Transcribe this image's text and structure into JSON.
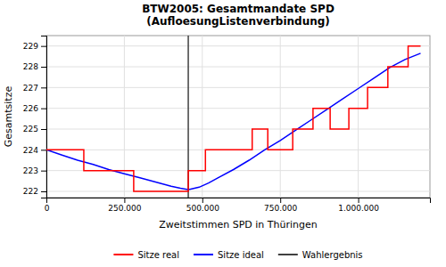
{
  "chart_data": {
    "type": "line",
    "title": "BTW2005: Gesamtmandate SPD\n(AufloesungListenverbindung)",
    "x_label": "Zweitstimmen SPD in Thüringen",
    "y_label": "Gesamtsitze",
    "series": [
      {
        "name": "Sitze real",
        "color": "red",
        "x": [
          0,
          120000,
          120000,
          280000,
          280000,
          390000,
          390000,
          455000,
          455000,
          510000,
          510000,
          590000,
          590000,
          660000,
          660000,
          710000,
          710000,
          790000,
          790000,
          855000,
          855000,
          910000,
          910000,
          970000,
          970000,
          1030000,
          1030000,
          1095000,
          1095000,
          1160000,
          1160000,
          1200000
        ],
        "values": [
          224,
          224,
          223,
          223,
          222,
          222,
          222,
          222,
          223,
          223,
          224,
          224,
          224,
          224,
          225,
          225,
          224,
          224,
          225,
          225,
          226,
          226,
          225,
          225,
          226,
          226,
          227,
          227,
          228,
          228,
          229,
          229
        ]
      },
      {
        "name": "Sitze ideal",
        "color": "blue",
        "x": [
          0,
          50000,
          100000,
          150000,
          200000,
          250000,
          300000,
          350000,
          400000,
          430000,
          450000,
          460000,
          490000,
          520000,
          550000,
          600000,
          650000,
          700000,
          750000,
          800000,
          850000,
          900000,
          950000,
          1000000,
          1050000,
          1100000,
          1150000,
          1200000
        ],
        "values": [
          224.0,
          223.75,
          223.5,
          223.3,
          223.05,
          222.85,
          222.65,
          222.45,
          222.25,
          222.15,
          222.1,
          222.1,
          222.2,
          222.4,
          222.65,
          223.05,
          223.5,
          224.0,
          224.45,
          224.95,
          225.45,
          225.95,
          226.45,
          226.95,
          227.45,
          227.95,
          228.35,
          228.65
        ]
      },
      {
        "name": "Wahlergebnis",
        "color": "#404040",
        "type": "vline",
        "x": [
          455000
        ]
      }
    ],
    "xlim": [
      0,
      1230000
    ],
    "xticks": [
      0,
      {
        "value": 250000,
        "label": "250.000"
      },
      {
        "value": 500000,
        "label": "500.000"
      },
      {
        "value": 750000,
        "label": "750.000"
      },
      {
        "value": 1000000,
        "label": "1.000.000"
      }
    ],
    "ylim": [
      221.7,
      229.5
    ],
    "yticks": [
      222,
      223,
      224,
      225,
      226,
      227,
      228,
      229
    ],
    "grid": true,
    "legend": "bottom"
  }
}
